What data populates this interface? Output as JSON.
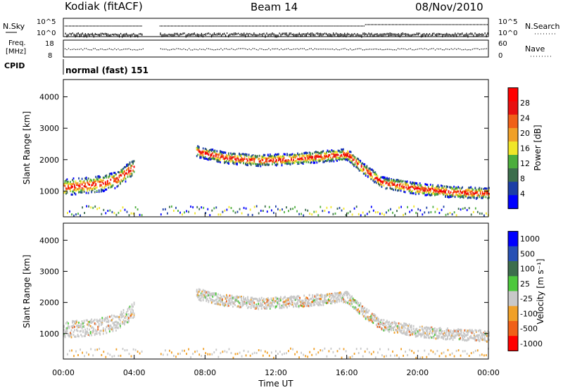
{
  "header": {
    "station": "Kodiak (fitACF)",
    "beam": "Beam 14",
    "date": "08/Nov/2010"
  },
  "noise_panel": {
    "left_label": "N.Sky",
    "right_label": "N.Search",
    "left_ticks": [
      "10^5",
      "10^0"
    ],
    "right_ticks": [
      "10^5",
      "10^0"
    ]
  },
  "freq_panel": {
    "left_label_1": "Freq.",
    "left_label_2": "[MHz]",
    "right_label": "Nave",
    "left_ticks": [
      "18",
      "8"
    ],
    "right_ticks": [
      "60",
      "0"
    ]
  },
  "cpid": {
    "label": "CPID",
    "value": "normal (fast) 151"
  },
  "colors": {
    "power": [
      "#0000ff",
      "#1c3ea6",
      "#3c6e4c",
      "#4cae3c",
      "#f0e628",
      "#f0a028",
      "#f06018",
      "#e81010",
      "#ff0000"
    ],
    "velocity": [
      "#ff0000",
      "#f06018",
      "#f0a028",
      "#c8c8c8",
      "#4cc83c",
      "#3c6e4c",
      "#2850b4",
      "#0000ff"
    ]
  },
  "chart_data": [
    {
      "type": "heatmap",
      "panel": "power",
      "ylabel": "Slant Range [km]",
      "xlabel": "",
      "x_ticks": [
        "00:00",
        "04:00",
        "08:00",
        "12:00",
        "16:00",
        "20:00",
        "00:00"
      ],
      "y_ticks": [
        1000,
        2000,
        3000,
        4000
      ],
      "xlim": [
        0,
        24
      ],
      "ylim": [
        180,
        4550
      ],
      "colorbar": {
        "label": "Power [dB]",
        "ticks": [
          "4",
          "8",
          "12",
          "16",
          "20",
          "24",
          "28"
        ]
      },
      "data_gap_hours": [
        [
          4.5,
          5.4
        ]
      ],
      "traces": [
        {
          "x": [
            0,
            1,
            2,
            3,
            4
          ],
          "y": [
            1150,
            1200,
            1250,
            1400,
            1800
          ]
        },
        {
          "x": [
            7.5,
            9,
            11,
            13,
            15,
            16,
            17,
            18,
            20,
            22,
            24
          ],
          "y": [
            2300,
            2100,
            2000,
            2050,
            2150,
            2200,
            1700,
            1300,
            1100,
            1000,
            950
          ]
        }
      ]
    },
    {
      "type": "heatmap",
      "panel": "velocity",
      "ylabel": "Slant Range [km]",
      "xlabel": "Time UT",
      "x_ticks": [
        "00:00",
        "04:00",
        "08:00",
        "12:00",
        "16:00",
        "20:00",
        "00:00"
      ],
      "y_ticks": [
        1000,
        2000,
        3000,
        4000
      ],
      "xlim": [
        0,
        24
      ],
      "ylim": [
        180,
        4550
      ],
      "colorbar": {
        "label": "Velocity [m s⁻¹]",
        "ticks": [
          "1000",
          "500",
          "100",
          "25",
          "-25",
          "-100",
          "-500",
          "-1000"
        ]
      },
      "data_gap_hours": [
        [
          4.5,
          5.4
        ]
      ],
      "traces": [
        {
          "x": [
            0,
            1,
            2,
            3,
            4
          ],
          "y": [
            1150,
            1200,
            1250,
            1400,
            1800
          ]
        },
        {
          "x": [
            7.5,
            9,
            11,
            13,
            15,
            16,
            17,
            18,
            20,
            22,
            24
          ],
          "y": [
            2300,
            2100,
            2000,
            2050,
            2150,
            2200,
            1700,
            1300,
            1100,
            1000,
            950
          ]
        }
      ]
    }
  ]
}
